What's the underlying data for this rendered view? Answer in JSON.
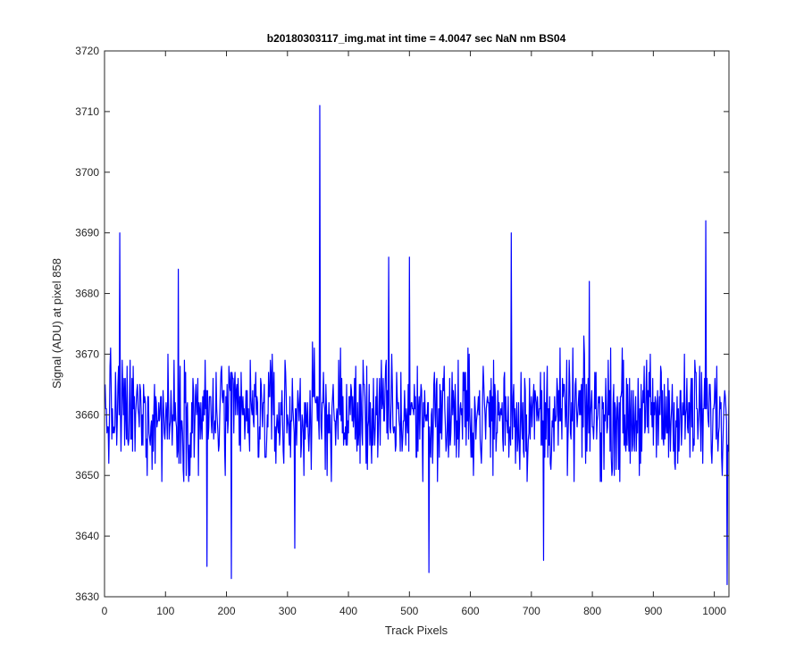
{
  "chart_data": {
    "type": "line",
    "title": "b20180303117_img.mat int time = 4.0047 sec  NaN nm BS04",
    "xlabel": "Track Pixels",
    "ylabel": "Signal (ADU) at pixel 858",
    "xlim": [
      0,
      1024
    ],
    "ylim": [
      3630,
      3720
    ],
    "xticks": [
      "0",
      "100",
      "200",
      "300",
      "400",
      "500",
      "600",
      "700",
      "800",
      "900",
      "1000"
    ],
    "yticks": [
      "3630",
      "3640",
      "3650",
      "3660",
      "3670",
      "3680",
      "3690",
      "3700",
      "3710",
      "3720"
    ],
    "grid": false,
    "series_color": "#0000ff",
    "series": [
      {
        "name": "",
        "x_start": 1,
        "x_step": 1,
        "noise_mean": 3660,
        "noise_amplitude": 14,
        "peaks": [
          {
            "x": 25,
            "y": 3690
          },
          {
            "x": 121,
            "y": 3684
          },
          {
            "x": 168,
            "y": 3635
          },
          {
            "x": 208,
            "y": 3633
          },
          {
            "x": 312,
            "y": 3638
          },
          {
            "x": 353,
            "y": 3711
          },
          {
            "x": 466,
            "y": 3686
          },
          {
            "x": 500,
            "y": 3686
          },
          {
            "x": 532,
            "y": 3634
          },
          {
            "x": 667,
            "y": 3690
          },
          {
            "x": 720,
            "y": 3636
          },
          {
            "x": 795,
            "y": 3682
          },
          {
            "x": 986,
            "y": 3692
          },
          {
            "x": 1021,
            "y": 3632
          }
        ]
      }
    ]
  }
}
